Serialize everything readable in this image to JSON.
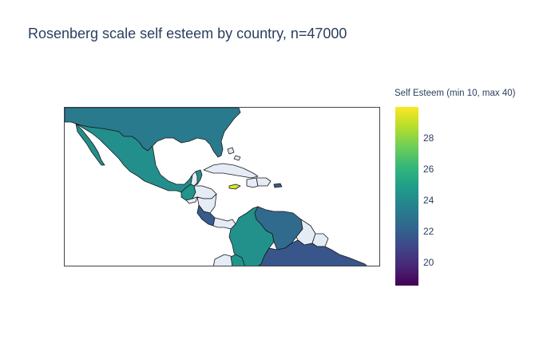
{
  "title": "Rosenberg scale self esteem by country, n=47000",
  "colorbar": {
    "title": "Self Esteem (min 10, max 40)",
    "range": [
      18.5,
      30.0
    ],
    "ticks": [
      28,
      26,
      24,
      22,
      20
    ],
    "colorscale": "Viridis",
    "stops": [
      "#440154",
      "#482878",
      "#3e4989",
      "#31688e",
      "#26828e",
      "#1f9e89",
      "#35b779",
      "#6ece58",
      "#b5de2b",
      "#fde725"
    ]
  },
  "map": {
    "no_data_color": "#e5ecf6",
    "border_color": "#1a1a1a",
    "countries": [
      {
        "name": "United States",
        "value": 23.2
      },
      {
        "name": "Mexico",
        "value": 24.2
      },
      {
        "name": "Guatemala",
        "value": 24.5
      },
      {
        "name": "Belize",
        "value": null
      },
      {
        "name": "Honduras",
        "value": null
      },
      {
        "name": "El Salvador",
        "value": null
      },
      {
        "name": "Nicaragua",
        "value": null
      },
      {
        "name": "Costa Rica",
        "value": 21.8
      },
      {
        "name": "Panama",
        "value": null
      },
      {
        "name": "Cuba",
        "value": null
      },
      {
        "name": "Bahamas",
        "value": null
      },
      {
        "name": "Jamaica",
        "value": 29.3
      },
      {
        "name": "Haiti",
        "value": null
      },
      {
        "name": "Dominican Republic",
        "value": null
      },
      {
        "name": "Puerto Rico",
        "value": 21.8
      },
      {
        "name": "Colombia",
        "value": 24.3
      },
      {
        "name": "Venezuela",
        "value": 22.5
      },
      {
        "name": "Guyana",
        "value": null
      },
      {
        "name": "Suriname",
        "value": null
      },
      {
        "name": "Ecuador",
        "value": 24.5
      },
      {
        "name": "Peru",
        "value": null
      },
      {
        "name": "Brazil",
        "value": 21.6
      }
    ]
  }
}
